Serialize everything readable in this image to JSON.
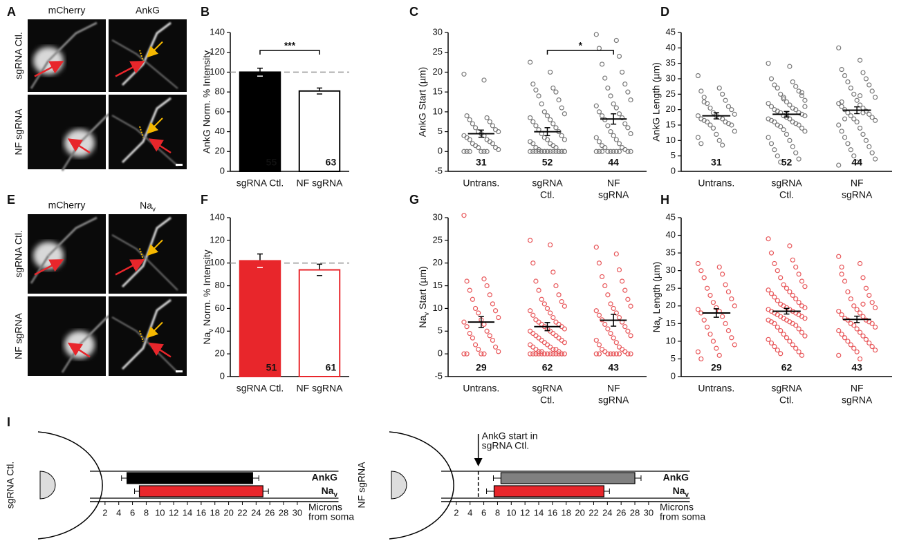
{
  "panel_letters": [
    "A",
    "B",
    "C",
    "D",
    "E",
    "F",
    "G",
    "H",
    "I"
  ],
  "image_panels": [
    {
      "columns": [
        "mCherry",
        "AnkG"
      ],
      "rows": [
        "sgRNA Ctl.",
        "NF sgRNA"
      ]
    },
    {
      "columns": [
        "mCherry",
        {
          "text": "Na",
          "sub": "v"
        }
      ],
      "rows": [
        "sgRNA Ctl.",
        "NF sgRNA"
      ]
    }
  ],
  "chart_data": [
    {
      "type": "bar",
      "ylabel": "AnkG Norm. % Intensity",
      "categories": [
        "sgRNA Ctl.",
        "NF sgRNA"
      ],
      "values": [
        100,
        81
      ],
      "errors": [
        4,
        3
      ],
      "n": [
        55,
        63
      ],
      "colors": [
        "#000000",
        "#ffffff"
      ],
      "edge_colors": [
        "#000000",
        "#000000"
      ],
      "ylim": [
        0,
        140
      ],
      "yticks": [
        0,
        20,
        40,
        60,
        80,
        100,
        120,
        140
      ],
      "reference_line": 100,
      "significance": {
        "label": "***",
        "pair": [
          0,
          1
        ]
      }
    },
    {
      "type": "strip",
      "ylabel": "AnkG Start (µm)",
      "categories": [
        [
          "Untrans."
        ],
        [
          "sgRNA",
          "Ctl."
        ],
        [
          "NF",
          "sgRNA"
        ]
      ],
      "color": "#777777",
      "ylim": [
        -5,
        30
      ],
      "yticks": [
        -5,
        0,
        5,
        10,
        15,
        20,
        25,
        30
      ],
      "significance": {
        "label": "*",
        "pair": [
          1,
          2
        ]
      },
      "groups": [
        {
          "n": 31,
          "mean": 4.5,
          "sem": 0.9,
          "values": [
            19.5,
            18,
            9,
            8.5,
            8,
            7.5,
            7,
            6.5,
            6,
            5.5,
            5,
            5,
            4.5,
            4,
            4,
            3.5,
            3,
            3,
            2.5,
            2,
            2,
            1.5,
            1,
            1,
            0.5,
            0,
            0,
            0,
            0,
            0,
            0
          ]
        },
        {
          "n": 52,
          "mean": 5,
          "sem": 1,
          "values": [
            22.5,
            20,
            17,
            16,
            15.5,
            15,
            14,
            13,
            12,
            11,
            10,
            9.5,
            9,
            8.5,
            8,
            7.5,
            7,
            6.5,
            6,
            5.5,
            5,
            4.5,
            4,
            3.5,
            3,
            3,
            2.5,
            2,
            2,
            1.5,
            1,
            1,
            0.5,
            0,
            0,
            0,
            0,
            0,
            0,
            0,
            0,
            0,
            0,
            0,
            0,
            0,
            0,
            0,
            0,
            0,
            0,
            0
          ]
        },
        {
          "n": 44,
          "mean": 8.2,
          "sem": 1.3,
          "values": [
            29.5,
            28,
            26,
            24,
            22,
            20,
            18.5,
            17,
            16,
            15,
            14,
            13,
            12,
            11.5,
            11,
            10,
            9.5,
            9,
            8.5,
            8,
            7,
            6.5,
            6,
            5,
            4.5,
            4,
            3.5,
            3,
            2.5,
            2,
            1.5,
            1,
            1,
            0.5,
            0,
            0,
            0,
            0,
            0,
            0,
            0,
            0,
            0,
            0
          ]
        }
      ]
    },
    {
      "type": "strip",
      "ylabel": "AnkG Length (µm)",
      "categories": [
        [
          "Untrans."
        ],
        [
          "sgRNA",
          "Ctl."
        ],
        [
          "NF",
          "sgRNA"
        ]
      ],
      "color": "#777777",
      "ylim": [
        0,
        45
      ],
      "yticks": [
        0,
        5,
        10,
        15,
        20,
        25,
        30,
        35,
        40,
        45
      ],
      "groups": [
        {
          "n": 31,
          "mean": 18,
          "sem": 1,
          "values": [
            31,
            27,
            26,
            25,
            24,
            23,
            22,
            21,
            20.5,
            20,
            19,
            18.5,
            18,
            18,
            17.5,
            17,
            17,
            16.5,
            16,
            16,
            15.5,
            15,
            15,
            14,
            13,
            12,
            11,
            10,
            9,
            8.5,
            22.5
          ]
        },
        {
          "n": 52,
          "mean": 18.5,
          "sem": 0.9,
          "values": [
            35,
            34,
            30,
            29,
            28,
            27.5,
            27,
            26,
            25,
            24.5,
            24,
            23,
            22.5,
            22,
            21.5,
            21,
            20.5,
            20,
            20,
            19.5,
            19,
            19,
            18.5,
            18,
            18,
            17.5,
            17,
            17,
            16.5,
            16,
            16,
            15.5,
            15,
            15,
            14.5,
            14,
            13.5,
            13,
            12,
            11,
            10,
            9,
            8,
            7,
            6,
            5,
            4,
            3,
            25.5,
            23.5,
            21,
            18.5
          ]
        },
        {
          "n": 44,
          "mean": 19.8,
          "sem": 1.1,
          "values": [
            40,
            36,
            33,
            32,
            31,
            30,
            29,
            28,
            27,
            26,
            25,
            24,
            23,
            22,
            21.5,
            21,
            20.5,
            20,
            19.5,
            19,
            18.5,
            18,
            17.5,
            17,
            16.5,
            16,
            15,
            14,
            13,
            12,
            11,
            10,
            9,
            8,
            7,
            6,
            5,
            4,
            3,
            2,
            24.5,
            22.5,
            19,
            17
          ]
        }
      ]
    },
    {
      "type": "bar",
      "ylabel": {
        "text": "Na",
        "sub": "v",
        "rest": "Norm. % Intensity"
      },
      "categories": [
        "sgRNA Ctl.",
        "NF sgRNA"
      ],
      "values": [
        102,
        94
      ],
      "errors": [
        6,
        5
      ],
      "n": [
        51,
        61
      ],
      "colors": [
        "#e8262b",
        "#ffffff"
      ],
      "edge_colors": [
        "#e8262b",
        "#e8262b"
      ],
      "ylim": [
        0,
        140
      ],
      "yticks": [
        0,
        20,
        40,
        60,
        80,
        100,
        120,
        140
      ],
      "reference_line": 100
    },
    {
      "type": "strip",
      "ylabel": {
        "text": "Na",
        "sub": "v",
        "rest": "Start (µm)"
      },
      "categories": [
        [
          "Untrans."
        ],
        [
          "sgRNA",
          "Ctl."
        ],
        [
          "NF",
          "sgRNA"
        ]
      ],
      "color": "#e8575a",
      "ylim": [
        -5,
        30
      ],
      "yticks": [
        -5,
        0,
        5,
        10,
        15,
        20,
        25,
        30
      ],
      "groups": [
        {
          "n": 29,
          "mean": 7,
          "sem": 1.2,
          "values": [
            30.5,
            16.5,
            16,
            15,
            14,
            13,
            12,
            11,
            10,
            9.5,
            9,
            8,
            7.5,
            7,
            6.5,
            6,
            5,
            4.5,
            4,
            3.5,
            3,
            2,
            1.5,
            1,
            0.5,
            0,
            0,
            0,
            0
          ]
        },
        {
          "n": 62,
          "mean": 6,
          "sem": 0.9,
          "values": [
            25,
            24,
            20,
            18,
            16,
            15,
            14,
            13,
            12,
            11.5,
            11,
            10.5,
            10,
            9.5,
            9,
            8.5,
            8,
            7.5,
            7,
            7,
            6.5,
            6.5,
            6,
            6,
            5.5,
            5.5,
            5,
            5,
            4.5,
            4.5,
            4,
            4,
            3.5,
            3.5,
            3,
            3,
            2.5,
            2.5,
            2,
            2,
            1.5,
            1.5,
            1,
            1,
            1,
            0.5,
            0.5,
            0.5,
            0,
            0,
            0,
            0,
            0,
            0,
            0,
            0,
            0,
            0,
            0,
            0,
            0,
            0
          ]
        },
        {
          "n": 43,
          "mean": 7.4,
          "sem": 1.3,
          "values": [
            23.5,
            22,
            20,
            18.5,
            17,
            16,
            15,
            14,
            13,
            12,
            11,
            10.5,
            10,
            9.5,
            9,
            8.5,
            8,
            7.5,
            7,
            6.5,
            6,
            5.5,
            5,
            4.5,
            4,
            3.5,
            3,
            2.5,
            2,
            1.5,
            1,
            1,
            0.5,
            0.5,
            0,
            0,
            0,
            0,
            0,
            0,
            0,
            0,
            0
          ]
        }
      ]
    },
    {
      "type": "strip",
      "ylabel": {
        "text": "Na",
        "sub": "v",
        "rest": "Length (µm)"
      },
      "categories": [
        [
          "Untrans."
        ],
        [
          "sgRNA",
          "Ctl."
        ],
        [
          "NF",
          "sgRNA"
        ]
      ],
      "color": "#e8575a",
      "ylim": [
        0,
        45
      ],
      "yticks": [
        0,
        5,
        10,
        15,
        20,
        25,
        30,
        35,
        40,
        45
      ],
      "groups": [
        {
          "n": 29,
          "mean": 18,
          "sem": 1.2,
          "values": [
            32,
            31,
            30,
            29,
            28,
            26,
            25,
            24,
            23,
            22,
            21,
            20,
            19.5,
            19,
            18.5,
            18,
            17,
            16,
            15,
            14,
            13,
            12,
            11,
            10,
            9,
            8,
            7,
            6,
            5
          ]
        },
        {
          "n": 62,
          "mean": 18.5,
          "sem": 0.8,
          "values": [
            39,
            37,
            35,
            33,
            32,
            31,
            30,
            29,
            28,
            27,
            26,
            25.5,
            25,
            24.5,
            24,
            23.5,
            23,
            22.5,
            22,
            21.5,
            21,
            20.5,
            20,
            20,
            19.5,
            19.5,
            19,
            19,
            18.5,
            18.5,
            18,
            18,
            17.5,
            17.5,
            17,
            17,
            16.5,
            16.5,
            16,
            16,
            15.5,
            15.5,
            15,
            15,
            14.5,
            14,
            13.5,
            13,
            12.5,
            12,
            11.5,
            11,
            10.5,
            10,
            9.5,
            9,
            8.5,
            8,
            7.5,
            7,
            6.5,
            6
          ]
        },
        {
          "n": 43,
          "mean": 16.2,
          "sem": 0.9,
          "values": [
            34,
            32,
            31,
            28,
            27,
            25,
            24,
            23,
            22,
            21,
            20,
            19.5,
            19,
            18.5,
            18,
            17.5,
            17,
            16.5,
            16,
            16,
            15.5,
            15,
            15,
            14.5,
            14,
            13.5,
            13,
            12.5,
            12,
            11.5,
            11,
            10.5,
            10,
            9.5,
            9,
            8.5,
            8,
            7.5,
            7,
            6,
            5,
            29,
            20.5
          ]
        }
      ]
    },
    {
      "type": "range",
      "row_label": "sgRNA Ctl.",
      "xlabel": [
        "Microns",
        "from soma"
      ],
      "xlim": [
        0,
        36
      ],
      "xticks": [
        2,
        4,
        6,
        8,
        10,
        12,
        14,
        16,
        18,
        20,
        22,
        24,
        26,
        28,
        30
      ],
      "series": [
        {
          "name": "AnkG",
          "color": "#000000",
          "label_color": "#000000",
          "start": 5.2,
          "end": 23.5,
          "start_err": 0.8,
          "end_err": 0.9
        },
        {
          "name": {
            "text": "Na",
            "sub": "v"
          },
          "color": "#e8262b",
          "label_color": "#e8262b",
          "start": 7,
          "end": 25,
          "start_err": 0.7,
          "end_err": 0.8
        }
      ]
    },
    {
      "type": "range",
      "row_label": "NF sgRNA",
      "xlabel": [
        "Microns",
        "from soma"
      ],
      "xlim": [
        0,
        36
      ],
      "xticks": [
        2,
        4,
        6,
        8,
        10,
        12,
        14,
        16,
        18,
        20,
        22,
        24,
        26,
        28,
        30
      ],
      "annotation": [
        "AnkG start in",
        "sgRNA Ctl."
      ],
      "series": [
        {
          "name": "AnkG",
          "color": "#808080",
          "label_color": "#000000",
          "start": 8.5,
          "end": 28,
          "start_err": 1.1,
          "end_err": 0.9
        },
        {
          "name": {
            "text": "Na",
            "sub": "v"
          },
          "color": "#e8262b",
          "label_color": "#e8262b",
          "start": 7.5,
          "end": 23.5,
          "start_err": 1.1,
          "end_err": 0.8
        }
      ]
    }
  ]
}
